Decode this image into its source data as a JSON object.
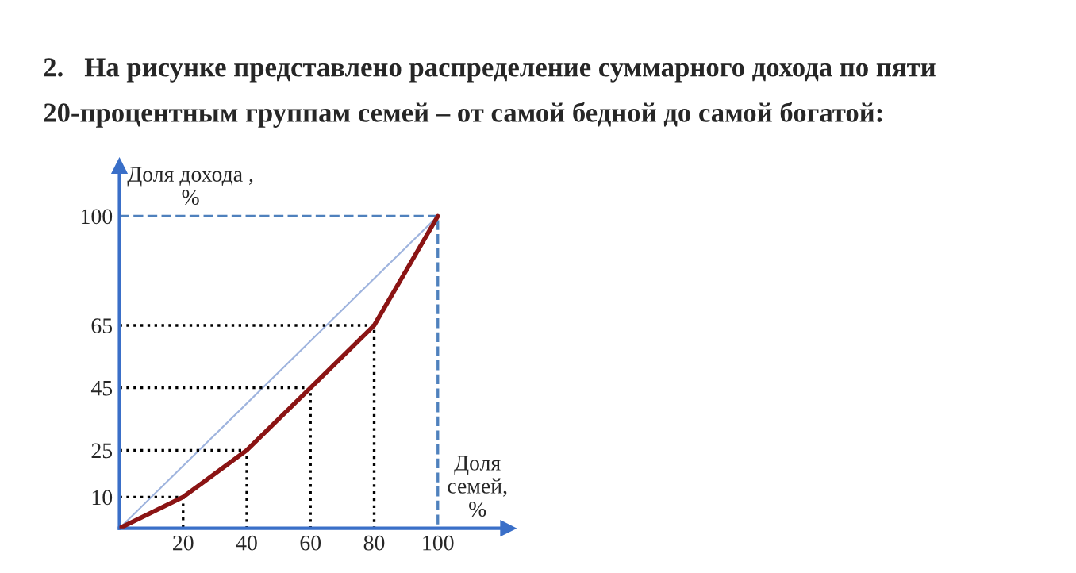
{
  "chart_data": {
    "type": "line",
    "title": "2.   На рисунке представлено распределение суммарного дохода по пяти 20-процентным группам семей – от самой бедной до самой богатой:",
    "xlabel": "Доля\nсемей,\n%",
    "ylabel": "Доля дохода ,\n%",
    "series": [
      {
        "x": [
          0,
          20,
          40,
          60,
          80,
          100
        ],
        "values": [
          0,
          10,
          25,
          45,
          65,
          100
        ],
        "color": "#8b1414"
      },
      {
        "x": [
          0,
          100
        ],
        "values": [
          0,
          100
        ],
        "color": "#9fb4de"
      },
      {
        "x": [
          0,
          20,
          20
        ],
        "values": [
          10,
          10,
          0
        ],
        "color": "#000000",
        "line_style": "dotted"
      },
      {
        "x": [
          0,
          40,
          40
        ],
        "values": [
          25,
          25,
          0
        ],
        "color": "#000000",
        "line_style": "dotted"
      },
      {
        "x": [
          0,
          60,
          60
        ],
        "values": [
          45,
          45,
          0
        ],
        "color": "#000000",
        "line_style": "dotted"
      },
      {
        "x": [
          0,
          80,
          80
        ],
        "values": [
          65,
          65,
          0
        ],
        "color": "#000000",
        "line_style": "dotted"
      },
      {
        "x": [
          0,
          100,
          100
        ],
        "values": [
          100,
          100,
          0
        ],
        "color": "#4f81bd",
        "line_style": "dashed"
      }
    ],
    "xlim": [
      0,
      122
    ],
    "ylim": [
      0,
      116
    ],
    "xticks": [
      20,
      40,
      60,
      80,
      100
    ],
    "yticks": [
      10,
      25,
      45,
      65,
      100
    ],
    "grid": false,
    "legend": false,
    "marker": "none",
    "line_style": "solid"
  }
}
